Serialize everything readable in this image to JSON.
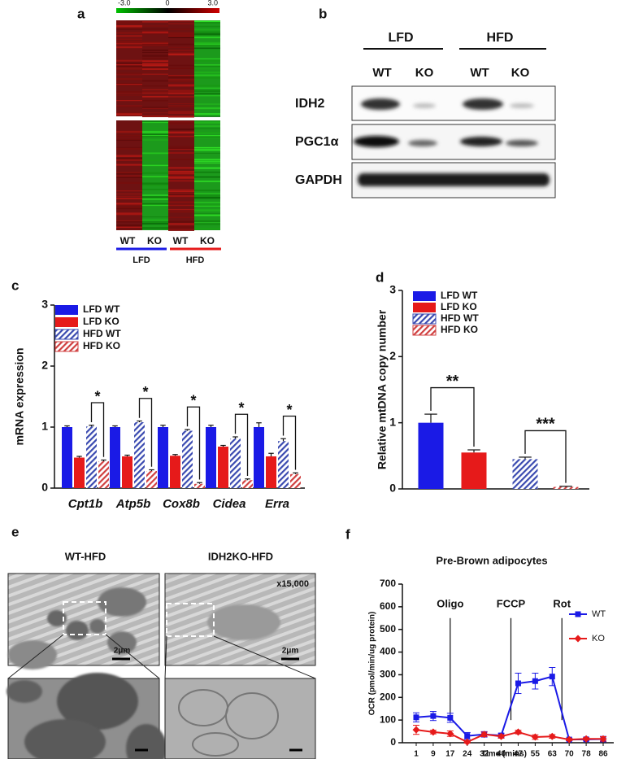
{
  "panel_labels": [
    "a",
    "b",
    "c",
    "d",
    "e",
    "f"
  ],
  "heatmap": {
    "scale_labels": [
      "-3.0",
      "0",
      "3.0"
    ],
    "columns": [
      "WT",
      "KO",
      "WT",
      "KO"
    ],
    "groups": [
      "LFD",
      "HFD"
    ]
  },
  "blot": {
    "groups": [
      "LFD",
      "HFD"
    ],
    "columns": [
      "WT",
      "KO",
      "WT",
      "KO"
    ],
    "rows": [
      "IDH2",
      "PGC1α",
      "GAPDH"
    ]
  },
  "em": {
    "titles": [
      "WT-HFD",
      "IDH2KO-HFD"
    ],
    "magnification": "x15,000",
    "scale_bars": [
      "2μm",
      "2μm"
    ]
  },
  "chart_data": [
    {
      "type": "bar",
      "y_label": "mRNA expression",
      "categories": [
        "Cpt1b",
        "Atp5b",
        "Cox8b",
        "Cidea",
        "Erra"
      ],
      "series": [
        {
          "name": "LFD WT",
          "color": "#1a1ae6",
          "hatch": false,
          "values": [
            1.0,
            1.0,
            1.0,
            1.0,
            1.0
          ],
          "errors": [
            0.02,
            0.02,
            0.03,
            0.03,
            0.07
          ]
        },
        {
          "name": "LFD KO",
          "color": "#e61a1a",
          "hatch": false,
          "values": [
            0.5,
            0.52,
            0.53,
            0.68,
            0.52
          ],
          "errors": [
            0.02,
            0.02,
            0.02,
            0.02,
            0.05
          ]
        },
        {
          "name": "HFD WT",
          "color": "#3a4ab0",
          "hatch": true,
          "values": [
            1.01,
            1.08,
            0.94,
            0.81,
            0.77
          ],
          "errors": [
            0.02,
            0.02,
            0.02,
            0.03,
            0.04
          ]
        },
        {
          "name": "HFD KO",
          "color": "#d04040",
          "hatch": true,
          "values": [
            0.44,
            0.28,
            0.07,
            0.13,
            0.23
          ],
          "errors": [
            0.02,
            0.02,
            0.02,
            0.02,
            0.02
          ]
        }
      ],
      "significance": [
        "*",
        "*",
        "*",
        "*",
        "*"
      ],
      "ylim": [
        0,
        3
      ],
      "yticks": [
        0,
        1,
        2,
        3
      ]
    },
    {
      "type": "bar",
      "y_label": "Relative mtDNA copy number",
      "categories": [
        null,
        null
      ],
      "series": [
        {
          "name": "LFD WT",
          "color": "#1a1ae6",
          "hatch": false,
          "values": [
            1.0,
            null
          ],
          "errors": [
            0.13,
            null
          ]
        },
        {
          "name": "LFD KO",
          "color": "#e61a1a",
          "hatch": false,
          "values": [
            0.55,
            null
          ],
          "errors": [
            0.04,
            null
          ]
        },
        {
          "name": "HFD WT",
          "color": "#3a4ab0",
          "hatch": true,
          "values": [
            null,
            0.45
          ],
          "errors": [
            null,
            0.03
          ]
        },
        {
          "name": "HFD KO",
          "color": "#d04040",
          "hatch": true,
          "values": [
            null,
            0.03
          ],
          "errors": [
            null,
            0.01
          ]
        }
      ],
      "significance": [
        "**",
        "***"
      ],
      "ylim": [
        0,
        3
      ],
      "yticks": [
        0,
        1,
        2,
        3
      ]
    },
    {
      "type": "line",
      "title": "Pre-Brown adipocytes",
      "x_label": "Time (mins)",
      "y_label": "OCR (pmol/min/ug protein)",
      "categories": [
        "1",
        "9",
        "17",
        "24",
        "32",
        "40",
        "47",
        "55",
        "63",
        "70",
        "78",
        "86"
      ],
      "series": [
        {
          "name": "WT",
          "color": "#1a1ae6",
          "marker": "square",
          "values": [
            112,
            118,
            110,
            30,
            37,
            32,
            262,
            272,
            292,
            14,
            15,
            16
          ],
          "errors": [
            20,
            20,
            20,
            15,
            12,
            10,
            45,
            35,
            40,
            5,
            5,
            12
          ]
        },
        {
          "name": "KO",
          "color": "#e61a1a",
          "marker": "diamond",
          "values": [
            57,
            47,
            40,
            3,
            37,
            28,
            47,
            25,
            28,
            14,
            17,
            17
          ],
          "errors": [
            20,
            8,
            12,
            5,
            10,
            8,
            8,
            10,
            8,
            5,
            5,
            10
          ]
        }
      ],
      "annotations": [
        {
          "text": "Oligo",
          "x": 17
        },
        {
          "text": "FCCP",
          "x": 44
        },
        {
          "text": "Rot",
          "x": 67
        }
      ],
      "legend": "right",
      "ylim": [
        0,
        700
      ],
      "yticks": [
        0,
        100,
        200,
        300,
        400,
        500,
        600,
        700
      ]
    }
  ]
}
